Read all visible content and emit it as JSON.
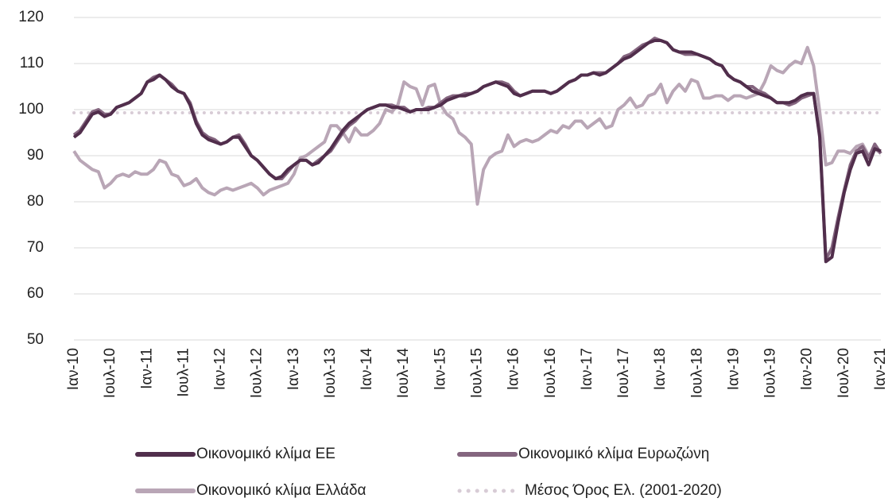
{
  "chart_data": {
    "type": "line",
    "categories": [
      "Ιαν-10",
      null,
      null,
      null,
      null,
      null,
      "Ιουλ-10",
      null,
      null,
      null,
      null,
      null,
      "Ιαν-11",
      null,
      null,
      null,
      null,
      null,
      "Ιουλ-11",
      null,
      null,
      null,
      null,
      null,
      "Ιαν-12",
      null,
      null,
      null,
      null,
      null,
      "Ιουλ-12",
      null,
      null,
      null,
      null,
      null,
      "Ιαν-13",
      null,
      null,
      null,
      null,
      null,
      "Ιουλ-13",
      null,
      null,
      null,
      null,
      null,
      "Ιαν-14",
      null,
      null,
      null,
      null,
      null,
      "Ιουλ-14",
      null,
      null,
      null,
      null,
      null,
      "Ιαν-15",
      null,
      null,
      null,
      null,
      null,
      "Ιουλ-15",
      null,
      null,
      null,
      null,
      null,
      "Ιαν-16",
      null,
      null,
      null,
      null,
      null,
      "Ιουλ-16",
      null,
      null,
      null,
      null,
      null,
      "Ιαν-17",
      null,
      null,
      null,
      null,
      null,
      "Ιουλ-17",
      null,
      null,
      null,
      null,
      null,
      "Ιαν-18",
      null,
      null,
      null,
      null,
      null,
      "Ιουλ-18",
      null,
      null,
      null,
      null,
      null,
      "Ιαν-19",
      null,
      null,
      null,
      null,
      null,
      "Ιουλ-19",
      null,
      null,
      null,
      null,
      null,
      "Ιαν-20",
      null,
      null,
      null,
      null,
      null,
      "Ιουλ-20",
      null,
      null,
      null,
      null,
      null,
      "Ιαν-21"
    ],
    "series": [
      {
        "name": "Οικονομικό κλίμα ΕΕ",
        "color": "#512e4c",
        "values": [
          94,
          95,
          97,
          99,
          99.5,
          98.5,
          99,
          100.5,
          101,
          101.5,
          102.5,
          103.5,
          106,
          106.5,
          107.5,
          106.5,
          105,
          104,
          103.5,
          101,
          97,
          94.5,
          93.5,
          93,
          92.5,
          93,
          94,
          94,
          92,
          90,
          89,
          87.5,
          86,
          85,
          85.5,
          87,
          88,
          89,
          89,
          88,
          88.5,
          90,
          91.5,
          93.5,
          95.5,
          97,
          98,
          99,
          100,
          100.5,
          101,
          101,
          100.5,
          100.5,
          100,
          99.5,
          100,
          100,
          100,
          100.5,
          101,
          102,
          102.5,
          103,
          103,
          103.5,
          104,
          105,
          105.5,
          106,
          105.5,
          105,
          103.5,
          103,
          103.5,
          104,
          104,
          104,
          103.5,
          104,
          105,
          106,
          106.5,
          107.5,
          107.5,
          108,
          107.5,
          108,
          109,
          110,
          111,
          111.5,
          112.5,
          113.5,
          114.5,
          115,
          115,
          114.5,
          113,
          112.5,
          112.5,
          112.5,
          112,
          111.5,
          111,
          110,
          109.5,
          107.5,
          106.5,
          106,
          105,
          104,
          103.5,
          103,
          102.5,
          101.5,
          101.5,
          101.5,
          102,
          103,
          103.5,
          103.5,
          94,
          67,
          68,
          75.5,
          82,
          87,
          90.5,
          91,
          88,
          91.5,
          91
        ]
      },
      {
        "name": "Οικονομικό κλίμα Ευρωζώνη",
        "color": "#84657f",
        "values": [
          94.5,
          95.5,
          97.5,
          99.5,
          100,
          99,
          99,
          100.5,
          101,
          101.5,
          102.5,
          103.5,
          106,
          107,
          107.5,
          106.5,
          105.5,
          104,
          103.5,
          101.5,
          97.5,
          95,
          94,
          93.5,
          92.5,
          93,
          94,
          94.5,
          92.5,
          90,
          89,
          87.5,
          86,
          85,
          85,
          86.5,
          88,
          89,
          89,
          88,
          89,
          90,
          91,
          93,
          95,
          96.5,
          97.5,
          99,
          100,
          100.5,
          101,
          101,
          101,
          100.5,
          100.5,
          99.5,
          100,
          100,
          100.5,
          100.5,
          101.5,
          102.5,
          103,
          103,
          103.5,
          103.5,
          104,
          105,
          105.5,
          106,
          106,
          105.5,
          104,
          103,
          103.5,
          104,
          104,
          104,
          103.5,
          104,
          105,
          106,
          106.5,
          107.5,
          107.5,
          108,
          108,
          108,
          109,
          110,
          111.5,
          112,
          113,
          114,
          114.5,
          115.5,
          115,
          114.5,
          113,
          112.5,
          112,
          112,
          112,
          111.5,
          111,
          110,
          109.5,
          107.5,
          106.5,
          106,
          105,
          105,
          104,
          103.5,
          102.5,
          101.5,
          101.5,
          101,
          101.5,
          102.5,
          103,
          103.5,
          94.5,
          67.5,
          70,
          76.5,
          82.5,
          88,
          91,
          92,
          89.5,
          92.5,
          90.5
        ]
      },
      {
        "name": "Οικονομικό κλίμα Ελλάδα",
        "color": "#b9a6b6",
        "values": [
          91,
          89,
          88,
          87,
          86.5,
          83,
          84,
          85.5,
          86,
          85.5,
          86.5,
          86,
          86,
          87,
          89,
          88.5,
          86,
          85.5,
          83.5,
          84,
          85,
          83,
          82,
          81.5,
          82.5,
          83,
          82.5,
          83,
          83.5,
          84,
          83,
          81.5,
          82.5,
          83,
          83.5,
          84,
          86,
          89.5,
          90,
          91,
          92,
          93,
          96.5,
          96.5,
          95,
          93,
          96,
          94.5,
          94.5,
          95.5,
          97,
          100,
          99.5,
          101,
          106,
          105,
          104.5,
          101,
          105,
          105.5,
          101,
          99,
          98,
          95,
          94,
          92.5,
          79.5,
          87,
          89.5,
          90.5,
          91,
          94.5,
          92,
          93,
          93.5,
          93,
          93.5,
          94.5,
          95.5,
          95,
          96.5,
          96,
          97.5,
          97.5,
          96,
          97,
          98,
          96,
          96.5,
          100,
          101,
          102.5,
          100.5,
          101,
          103,
          103.5,
          105.5,
          101.5,
          104,
          105.5,
          104,
          106.5,
          106,
          102.5,
          102.5,
          103,
          103,
          102,
          103,
          103,
          102.5,
          103,
          103.5,
          106,
          109.5,
          108.5,
          108,
          109.5,
          110.5,
          110,
          113.5,
          109.5,
          99.5,
          88,
          88.5,
          91,
          91,
          90.5,
          92,
          92.5,
          90,
          91.5,
          90.5
        ]
      }
    ],
    "reference_lines": [
      {
        "name": "Μέσος Όρος Ελ. (2001-2020)",
        "value": 99.3,
        "color": "#d8ccd6",
        "style": "dotted"
      }
    ],
    "ylim": [
      50,
      120
    ],
    "yticks": [
      50,
      60,
      70,
      80,
      90,
      100,
      110,
      120
    ],
    "grid": true
  }
}
